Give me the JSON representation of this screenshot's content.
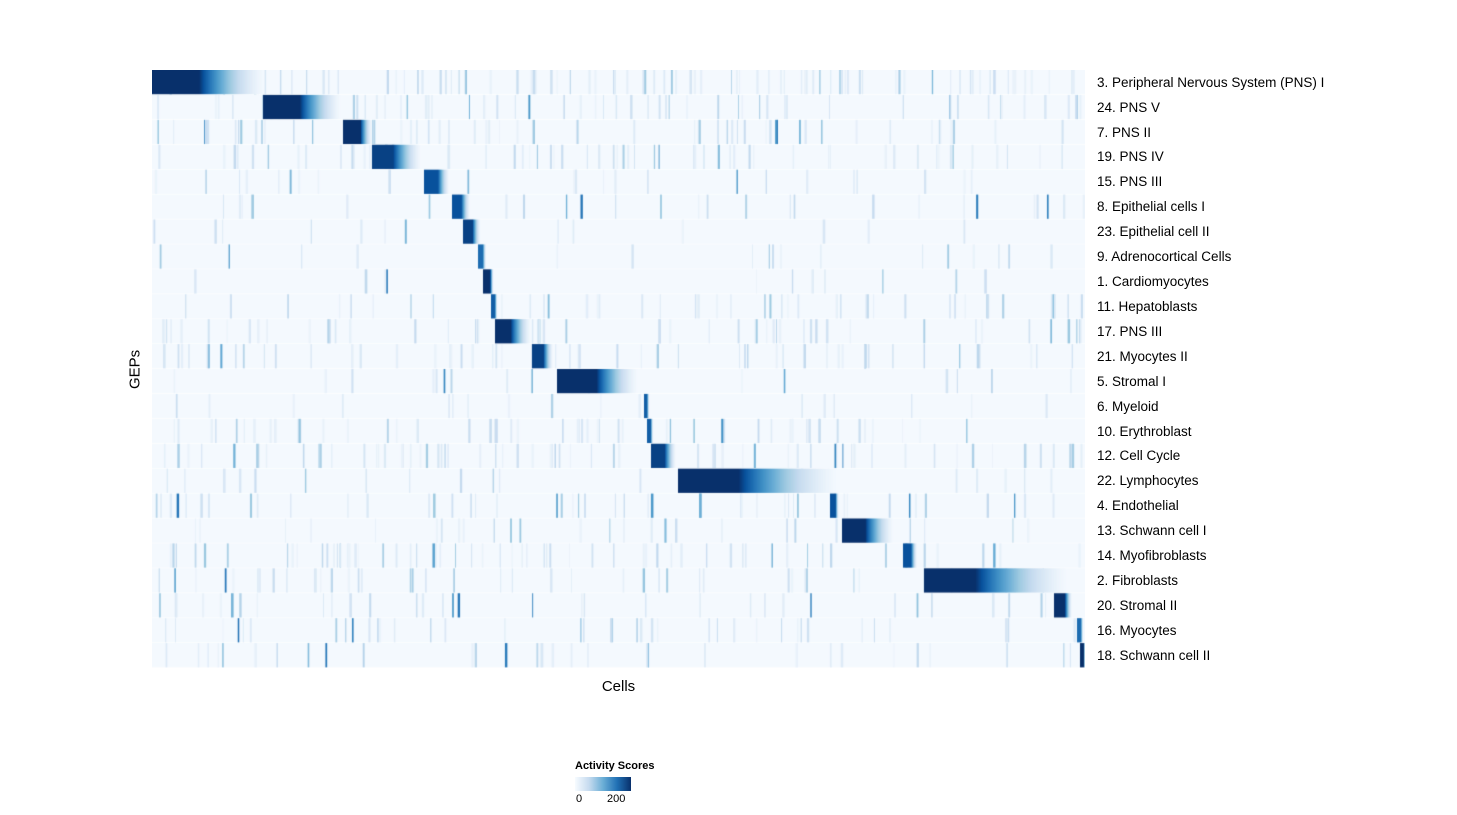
{
  "axes": {
    "x_label": "Cells",
    "y_label": "GEPs"
  },
  "chart_data": {
    "type": "heatmap",
    "title": "",
    "xlabel": "Cells",
    "ylabel": "GEPs",
    "x_tick_labels_shown": false,
    "plot_background": "#f5f9fd",
    "colorbar": {
      "title": "Activity Scores",
      "min": 0,
      "max": 200,
      "palette": "Blues",
      "colors": [
        "#f7fbff",
        "#c6dbef",
        "#6baed6",
        "#2171b5",
        "#08306b"
      ]
    },
    "rows": [
      {
        "label": "3. Peripheral Nervous System (PNS) I",
        "block": {
          "start": 0.0,
          "solid_end": 0.05,
          "tail_end": 0.125,
          "peak": 200
        },
        "noise": 0.85
      },
      {
        "label": "24. PNS V",
        "block": {
          "start": 0.12,
          "solid_end": 0.158,
          "tail_end": 0.205,
          "peak": 200
        },
        "noise": 0.5
      },
      {
        "label": "7. PNS II",
        "block": {
          "start": 0.205,
          "solid_end": 0.223,
          "tail_end": 0.236,
          "peak": 200
        },
        "noise": 0.5
      },
      {
        "label": "19. PNS IV",
        "block": {
          "start": 0.236,
          "solid_end": 0.258,
          "tail_end": 0.29,
          "peak": 190
        },
        "noise": 0.55
      },
      {
        "label": "15. PNS III",
        "block": {
          "start": 0.292,
          "solid_end": 0.306,
          "tail_end": 0.319,
          "peak": 180
        },
        "noise": 0.22
      },
      {
        "label": "8. Epithelial cells I",
        "block": {
          "start": 0.322,
          "solid_end": 0.331,
          "tail_end": 0.341,
          "peak": 180
        },
        "noise": 0.25
      },
      {
        "label": "23. Epithelial cell II",
        "block": {
          "start": 0.334,
          "solid_end": 0.343,
          "tail_end": 0.352,
          "peak": 190
        },
        "noise": 0.12
      },
      {
        "label": "9. Adrenocortical Cells",
        "block": {
          "start": 0.35,
          "solid_end": 0.354,
          "tail_end": 0.358,
          "peak": 160
        },
        "noise": 0.15
      },
      {
        "label": "1. Cardiomyocytes",
        "block": {
          "start": 0.355,
          "solid_end": 0.362,
          "tail_end": 0.366,
          "peak": 200
        },
        "noise": 0.1
      },
      {
        "label": "11. Hepatoblasts",
        "block": {
          "start": 0.364,
          "solid_end": 0.367,
          "tail_end": 0.37,
          "peak": 170
        },
        "noise": 0.4
      },
      {
        "label": "17. PNS III",
        "block": {
          "start": 0.368,
          "solid_end": 0.384,
          "tail_end": 0.407,
          "peak": 200
        },
        "noise": 0.45
      },
      {
        "label": "21. Myocytes II",
        "block": {
          "start": 0.408,
          "solid_end": 0.419,
          "tail_end": 0.43,
          "peak": 190
        },
        "noise": 0.5
      },
      {
        "label": "5. Stromal I",
        "block": {
          "start": 0.435,
          "solid_end": 0.476,
          "tail_end": 0.523,
          "peak": 200
        },
        "noise": 0.15
      },
      {
        "label": "6. Myeloid",
        "block": {
          "start": 0.528,
          "solid_end": 0.53,
          "tail_end": 0.533,
          "peak": 170
        },
        "noise": 0.15
      },
      {
        "label": "10. Erythroblast",
        "block": {
          "start": 0.531,
          "solid_end": 0.534,
          "tail_end": 0.537,
          "peak": 170
        },
        "noise": 0.5
      },
      {
        "label": "12. Cell Cycle",
        "block": {
          "start": 0.535,
          "solid_end": 0.549,
          "tail_end": 0.562,
          "peak": 190
        },
        "noise": 0.6
      },
      {
        "label": "22. Lymphocytes",
        "block": {
          "start": 0.564,
          "solid_end": 0.628,
          "tail_end": 0.742,
          "peak": 200
        },
        "noise": 0.18
      },
      {
        "label": "4. Endothelial",
        "block": {
          "start": 0.727,
          "solid_end": 0.732,
          "tail_end": 0.736,
          "peak": 180
        },
        "noise": 0.45
      },
      {
        "label": "13. Schwann cell I",
        "block": {
          "start": 0.74,
          "solid_end": 0.764,
          "tail_end": 0.796,
          "peak": 200
        },
        "noise": 0.25
      },
      {
        "label": "14. Myofibroblasts",
        "block": {
          "start": 0.805,
          "solid_end": 0.813,
          "tail_end": 0.82,
          "peak": 180
        },
        "noise": 0.55
      },
      {
        "label": "2. Fibroblasts",
        "block": {
          "start": 0.828,
          "solid_end": 0.882,
          "tail_end": 0.988,
          "peak": 200
        },
        "noise": 0.4
      },
      {
        "label": "20. Stromal II",
        "block": {
          "start": 0.967,
          "solid_end": 0.978,
          "tail_end": 0.986,
          "peak": 200
        },
        "noise": 0.3
      },
      {
        "label": "16. Myocytes",
        "block": {
          "start": 0.992,
          "solid_end": 0.995,
          "tail_end": 0.998,
          "peak": 160
        },
        "noise": 0.35
      },
      {
        "label": "18. Schwann cell II",
        "block": {
          "start": 0.995,
          "solid_end": 0.998,
          "tail_end": 1.0,
          "peak": 200
        },
        "noise": 0.3
      }
    ]
  }
}
